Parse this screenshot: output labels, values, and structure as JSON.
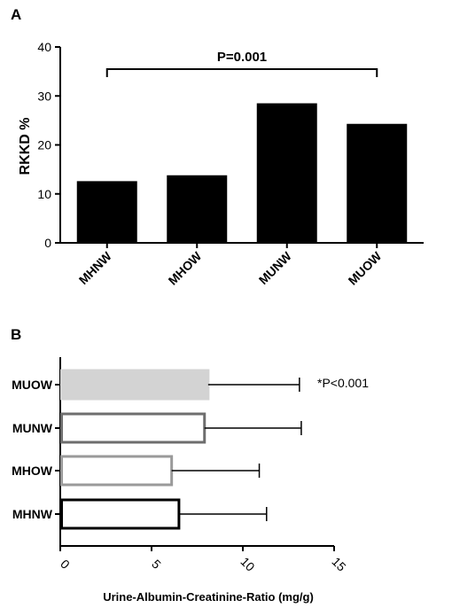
{
  "chart_data": [
    {
      "panel": "A",
      "type": "bar",
      "orientation": "vertical",
      "categories": [
        "MHNW",
        "MHOW",
        "MUNW",
        "MUOW"
      ],
      "values": [
        12.6,
        13.8,
        28.5,
        24.3
      ],
      "ylabel": "RKKD %",
      "ylim": [
        0,
        40
      ],
      "yticks": [
        "0",
        "10",
        "20",
        "30",
        "40"
      ],
      "bar_color": "#000000",
      "annotation": {
        "text": "P=0.001",
        "from": "MHNW",
        "to": "MUOW"
      }
    },
    {
      "panel": "B",
      "type": "bar",
      "orientation": "horizontal",
      "categories": [
        "MUOW",
        "MUNW",
        "MHOW",
        "MHNW"
      ],
      "values": [
        8.1,
        7.9,
        6.1,
        6.5
      ],
      "error": [
        5.0,
        5.3,
        4.8,
        4.8
      ],
      "xlabel": "Urine-Albumin-Creatinine-Ratio (mg/g)",
      "xlim": [
        0,
        15
      ],
      "xticks": [
        "0",
        "5",
        "10",
        "15"
      ],
      "bar_styles": [
        {
          "fill": "#d3d3d3",
          "stroke": "#d3d3d3"
        },
        {
          "fill": "#ffffff",
          "stroke": "#6e6e6e"
        },
        {
          "fill": "#ffffff",
          "stroke": "#9a9a9a"
        },
        {
          "fill": "#ffffff",
          "stroke": "#000000"
        }
      ],
      "annotation": {
        "text": "*P<0.001",
        "category": "MUOW"
      }
    }
  ]
}
